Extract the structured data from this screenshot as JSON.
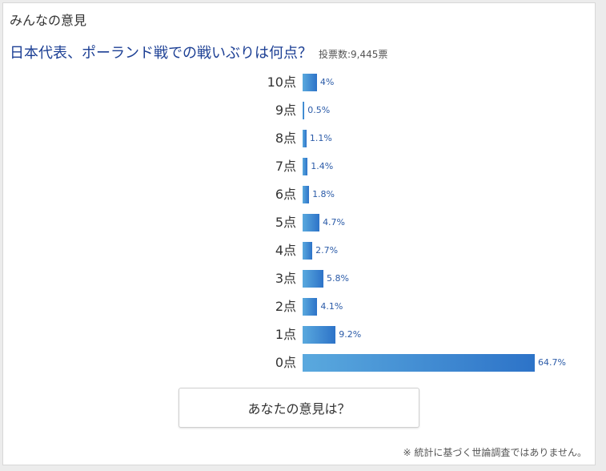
{
  "header": {
    "section_title": "みんなの意見"
  },
  "poll": {
    "question": "日本代表、ポーランド戦での戦いぶりは何点？",
    "vote_count": "投票数:9,445票",
    "button_label": "あなたの意見は？",
    "footnote": "※ 統計に基づく世論調査ではありません。"
  },
  "colors": {
    "bar_start": "#5aa9de",
    "bar_end": "#2d73c8",
    "question_text": "#1c3f94"
  },
  "chart_data": {
    "type": "bar",
    "orientation": "horizontal",
    "categories": [
      "10点",
      "9点",
      "8点",
      "7点",
      "6点",
      "5点",
      "4点",
      "3点",
      "2点",
      "1点",
      "0点"
    ],
    "values": [
      4,
      0.5,
      1.1,
      1.4,
      1.8,
      4.7,
      2.7,
      5.8,
      4.1,
      9.2,
      64.7
    ],
    "value_labels": [
      "4%",
      "0.5%",
      "1.1%",
      "1.4%",
      "1.8%",
      "4.7%",
      "2.7%",
      "5.8%",
      "4.1%",
      "9.2%",
      "64.7%"
    ],
    "title": "",
    "xlabel": "",
    "ylabel": "",
    "unit": "%",
    "grid": false,
    "legend": "none"
  }
}
